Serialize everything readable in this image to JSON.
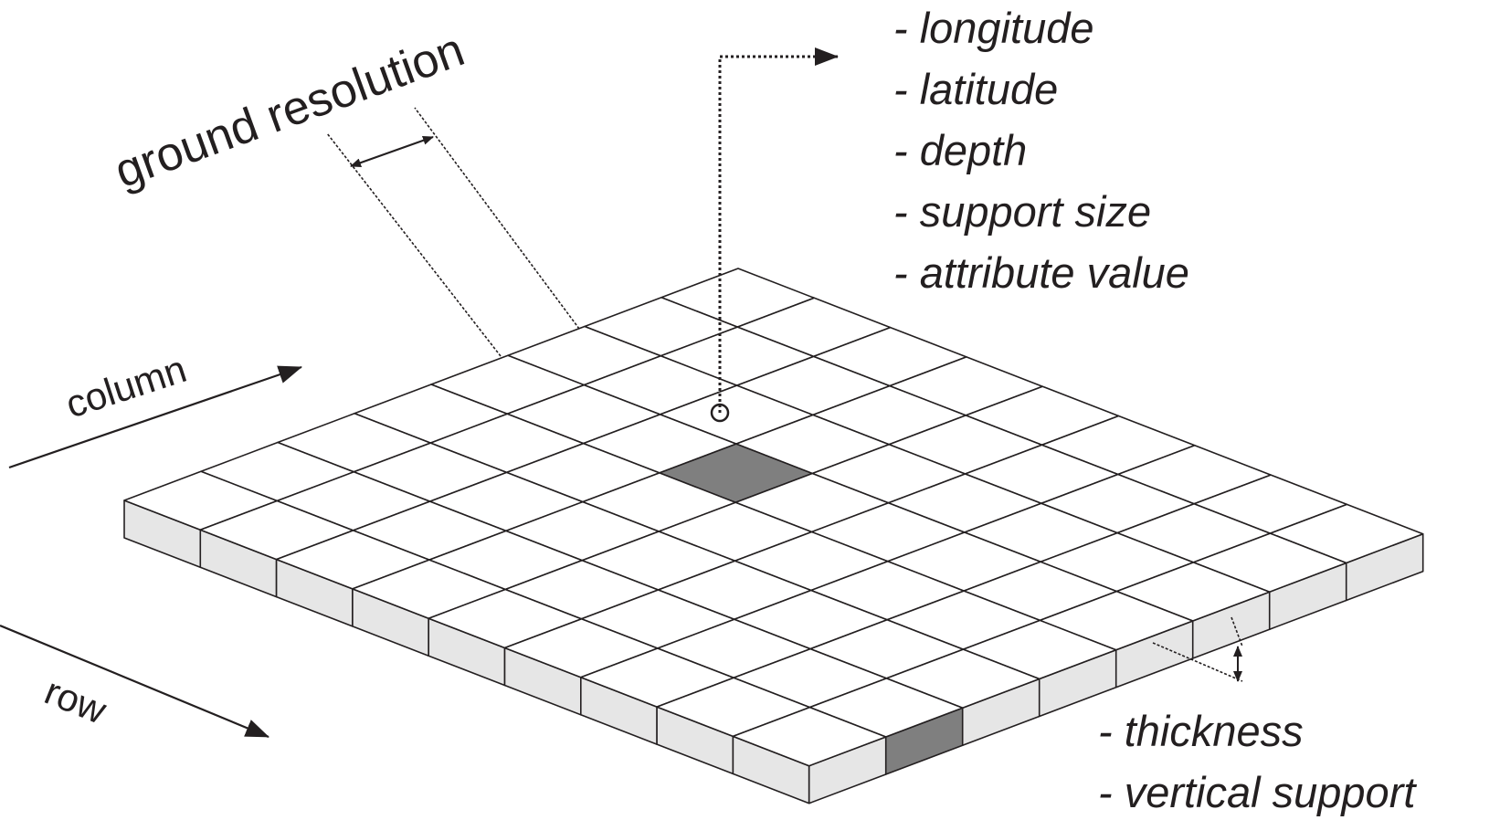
{
  "labels": {
    "ground_resolution": "ground resolution",
    "column": "column",
    "row": "row"
  },
  "cell_attributes": [
    "- longitude",
    "- latitude",
    "- depth",
    "- support size",
    "- attribute value"
  ],
  "vertical_attributes": [
    "- thickness",
    "- vertical support"
  ],
  "grid": {
    "rows": 8,
    "columns": 9
  },
  "highlighted_top_cell": {
    "row": 3,
    "column": 3
  },
  "highlighted_side_cell": {
    "column": 6
  },
  "colors": {
    "line": "#231f20",
    "cell_top": "#ffffff",
    "cell_side": "#e6e6e6",
    "highlight": "#7f7f7f"
  }
}
